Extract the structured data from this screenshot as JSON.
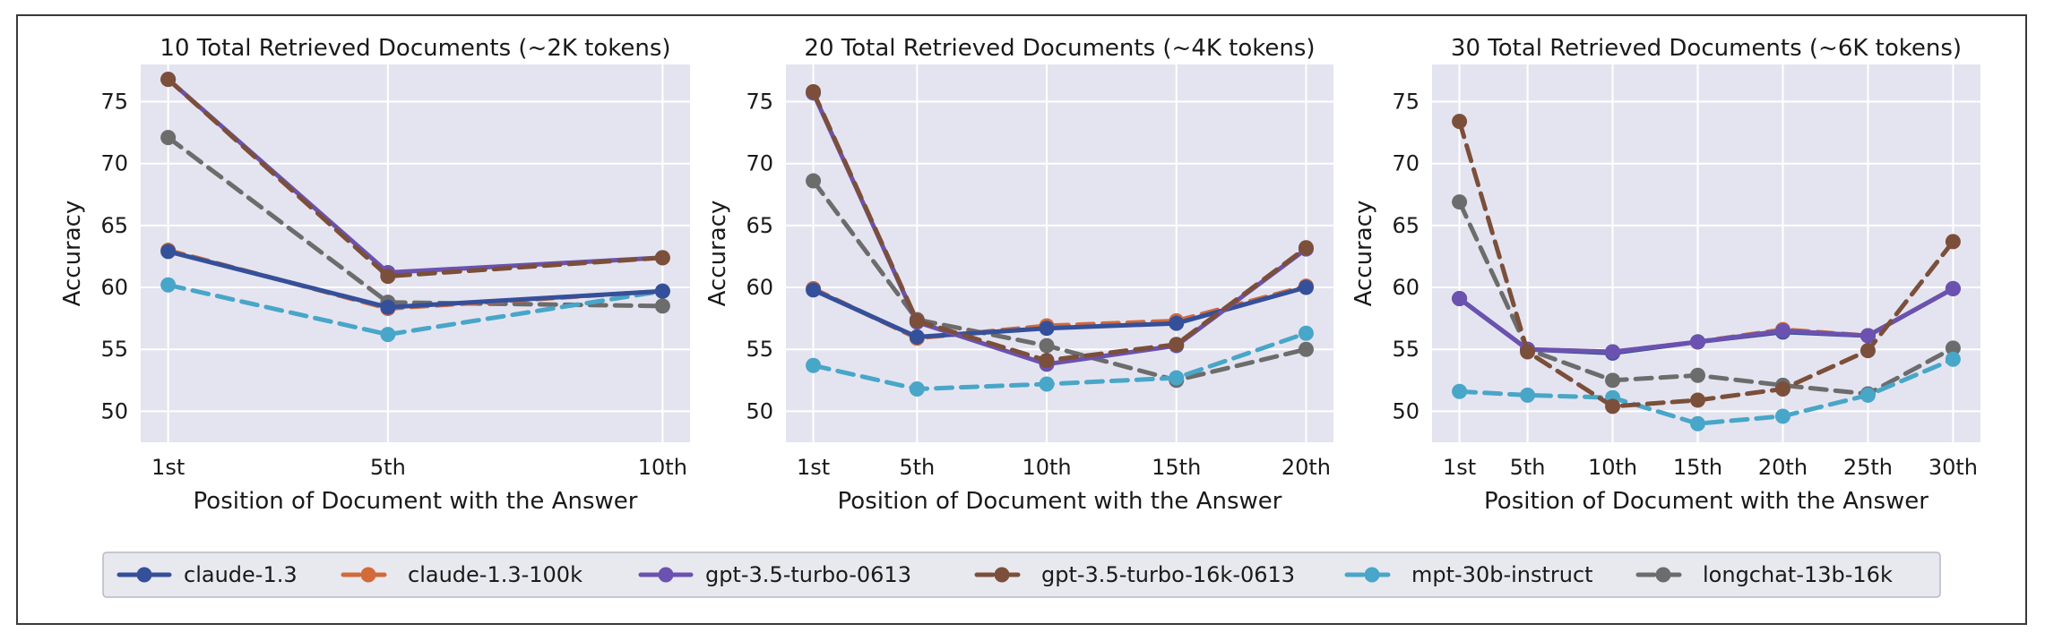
{
  "chart_data": {
    "type": "line",
    "legend": [
      {
        "name": "claude-1.3",
        "color": "#35509a",
        "dashed": false
      },
      {
        "name": "claude-1.3-100k",
        "color": "#d26a3a",
        "dashed": true
      },
      {
        "name": "gpt-3.5-turbo-0613",
        "color": "#6b52b0",
        "dashed": false
      },
      {
        "name": "gpt-3.5-turbo-16k-0613",
        "color": "#7b4f3a",
        "dashed": true
      },
      {
        "name": "mpt-30b-instruct",
        "color": "#48a6c8",
        "dashed": true
      },
      {
        "name": "longchat-13b-16k",
        "color": "#6c6c6c",
        "dashed": true
      }
    ],
    "panels": [
      {
        "title": "10 Total Retrieved Documents (~2K tokens)",
        "xlabel": "Position of Document with the Answer",
        "ylabel": "Accuracy",
        "x": [
          1,
          5,
          10
        ],
        "xticklabels": [
          "1st",
          "5th",
          "10th"
        ],
        "ylim": [
          47.5,
          78
        ],
        "yticks": [
          50,
          55,
          60,
          65,
          70,
          75
        ],
        "series": [
          {
            "name": "longchat-13b-16k",
            "values": [
              72.1,
              58.8,
              58.5
            ]
          },
          {
            "name": "mpt-30b-instruct",
            "values": [
              60.2,
              56.2,
              59.7
            ]
          },
          {
            "name": "claude-1.3-100k",
            "values": [
              63.0,
              58.3,
              59.7
            ]
          },
          {
            "name": "claude-1.3",
            "values": [
              62.9,
              58.4,
              59.7
            ]
          },
          {
            "name": "gpt-3.5-turbo-0613",
            "values": [
              76.8,
              61.2,
              62.4
            ]
          },
          {
            "name": "gpt-3.5-turbo-16k-0613",
            "values": [
              76.8,
              60.9,
              62.4
            ]
          }
        ]
      },
      {
        "title": "20 Total Retrieved Documents (~4K tokens)",
        "xlabel": "Position of Document with the Answer",
        "ylabel": "Accuracy",
        "x": [
          1,
          5,
          10,
          15,
          20
        ],
        "xticklabels": [
          "1st",
          "5th",
          "10th",
          "15th",
          "20th"
        ],
        "ylim": [
          47.5,
          78
        ],
        "yticks": [
          50,
          55,
          60,
          65,
          70,
          75
        ],
        "series": [
          {
            "name": "longchat-13b-16k",
            "values": [
              68.6,
              57.4,
              55.3,
              52.5,
              55.0
            ]
          },
          {
            "name": "mpt-30b-instruct",
            "values": [
              53.7,
              51.8,
              52.2,
              52.7,
              56.3
            ]
          },
          {
            "name": "claude-1.3-100k",
            "values": [
              59.9,
              55.9,
              56.9,
              57.3,
              60.1
            ]
          },
          {
            "name": "claude-1.3",
            "values": [
              59.8,
              56.0,
              56.7,
              57.1,
              60.0
            ]
          },
          {
            "name": "gpt-3.5-turbo-0613",
            "values": [
              75.7,
              57.2,
              53.8,
              55.3,
              63.1
            ]
          },
          {
            "name": "gpt-3.5-turbo-16k-0613",
            "values": [
              75.8,
              57.3,
              54.1,
              55.4,
              63.2
            ]
          }
        ]
      },
      {
        "title": "30 Total Retrieved Documents (~6K tokens)",
        "xlabel": "Position of Document with the Answer",
        "ylabel": "Accuracy",
        "x": [
          1,
          5,
          10,
          15,
          20,
          25,
          30
        ],
        "xticklabels": [
          "1st",
          "5th",
          "10th",
          "15th",
          "20th",
          "25th",
          "30th"
        ],
        "ylim": [
          47.5,
          78
        ],
        "yticks": [
          50,
          55,
          60,
          65,
          70,
          75
        ],
        "series": [
          {
            "name": "longchat-13b-16k",
            "values": [
              66.9,
              55.0,
              52.5,
              52.9,
              52.1,
              51.4,
              55.1
            ]
          },
          {
            "name": "mpt-30b-instruct",
            "values": [
              51.6,
              51.3,
              51.1,
              49.0,
              49.6,
              51.3,
              54.2
            ]
          },
          {
            "name": "claude-1.3-100k",
            "values": [
              59.1,
              55.0,
              54.8,
              55.6,
              56.6,
              56.1,
              59.9
            ]
          },
          {
            "name": "claude-1.3",
            "values": [
              59.1,
              55.0,
              54.7,
              55.6,
              56.4,
              56.1,
              59.9
            ]
          },
          {
            "name": "gpt-3.5-turbo-0613",
            "values": [
              59.1,
              55.0,
              54.8,
              55.6,
              56.5,
              56.1,
              59.9
            ]
          },
          {
            "name": "gpt-3.5-turbo-16k-0613",
            "values": [
              73.4,
              54.8,
              50.4,
              50.9,
              51.8,
              54.9,
              63.7
            ]
          }
        ]
      }
    ]
  }
}
